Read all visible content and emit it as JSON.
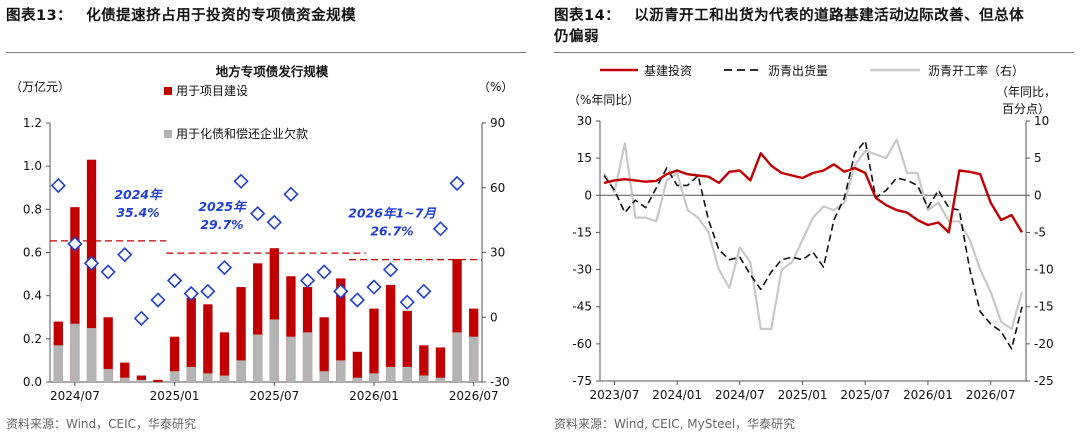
{
  "panels": [
    {
      "figure_label": "图表13：",
      "figure_title": "化债提速挤占用于投资的专项债资金规模",
      "source": "资料来源：Wind，CEIC，华泰研究"
    },
    {
      "figure_label": "图表14：",
      "figure_title_line1": "以沥青开工和出货为代表的道路基建活动边际改善、但总体",
      "figure_title_line2": "仍偏弱",
      "source": "资料来源：Wind, CEIC, MySteel，华泰研究"
    }
  ],
  "chart_data": [
    {
      "type": "bar",
      "title": "地方专项债发行规模",
      "ylabel_left": "（万亿元）",
      "ylabel_right": "（%）",
      "ylim_left": [
        0,
        1.2
      ],
      "ylim_right": [
        -30,
        90
      ],
      "yticks_left": [
        "0.0",
        "0.2",
        "0.4",
        "0.6",
        "0.8",
        "1.0",
        "1.2"
      ],
      "yticks_right": [
        "-30",
        "0",
        "30",
        "60",
        "90"
      ],
      "xtick_labels": [
        "2024/07",
        "2025/01",
        "2025/07",
        "2026/01",
        "2026/07"
      ],
      "xtick_months": [
        "2024-07",
        "2025-01",
        "2025-07",
        "2026-01",
        "2026-07"
      ],
      "months": [
        "2024-06",
        "2024-07",
        "2024-08",
        "2024-09",
        "2024-10",
        "2024-11",
        "2024-12",
        "2025-01",
        "2025-02",
        "2025-03",
        "2025-04",
        "2025-05",
        "2025-06",
        "2025-07",
        "2025-08",
        "2025-09",
        "2025-10",
        "2025-11",
        "2025-12",
        "2026-01",
        "2026-02",
        "2026-03",
        "2026-04",
        "2026-05",
        "2026-06",
        "2026-07"
      ],
      "series": [
        {
          "name": "用于项目建设",
          "color": "#c00000",
          "kind": "bar",
          "values": [
            0.28,
            0.81,
            1.03,
            0.3,
            0.09,
            0.03,
            0.01,
            0.21,
            0.39,
            0.36,
            0.23,
            0.44,
            0.55,
            0.62,
            0.49,
            0.44,
            0.3,
            0.48,
            0.14,
            0.34,
            0.45,
            0.33,
            0.17,
            0.16,
            0.57,
            0.34
          ]
        },
        {
          "name": "用于化债和偿还企业欠款",
          "color": "#b4b4b4",
          "kind": "bar",
          "values": [
            0.17,
            0.27,
            0.25,
            0.06,
            0.02,
            0.01,
            0.0,
            0.05,
            0.07,
            0.04,
            0.03,
            0.1,
            0.22,
            0.29,
            0.21,
            0.23,
            0.05,
            0.1,
            0.02,
            0.04,
            0.07,
            0.07,
            0.03,
            0.02,
            0.23,
            0.21
          ]
        },
        {
          "name": "用于项目建设占比(右)",
          "color": "#1f3fd6",
          "kind": "marker",
          "legend": false,
          "values": [
            61,
            34,
            25,
            21,
            29,
            -0.5,
            8,
            17,
            11,
            12,
            23,
            63,
            48,
            44,
            57,
            17,
            21,
            12,
            8,
            14,
            22,
            7,
            12,
            41,
            62
          ]
        }
      ],
      "marker_months": [
        "2024-06",
        "2024-07",
        "2024-08",
        "2024-09",
        "2024-10",
        "2024-11",
        "2024-12",
        "2025-01",
        "2025-02",
        "2025-03",
        "2025-04",
        "2025-05",
        "2025-06",
        "2025-07",
        "2025-08",
        "2025-09",
        "2025-10",
        "2025-11",
        "2025-12",
        "2026-01",
        "2026-02",
        "2026-03",
        "2026-04",
        "2026-05",
        "2026-06"
      ],
      "averages": [
        {
          "label_line1": "2024年",
          "label_line2": "35.4%",
          "value": 35.4,
          "from": "2024-06",
          "to": "2024-12"
        },
        {
          "label_line1": "2025年",
          "label_line2": "29.7%",
          "value": 29.7,
          "from": "2025-01",
          "to": "2025-12"
        },
        {
          "label_line1": "2026年1~7月",
          "label_line2": "26.7%",
          "value": 26.7,
          "from": "2025-12",
          "to": "2026-07"
        }
      ]
    },
    {
      "type": "line",
      "ylabel_left": "（%年同比）",
      "ylabel_right_line1": "（年同比，",
      "ylabel_right_line2": "百分点）",
      "ylim_left": [
        -75,
        30
      ],
      "ylim_right": [
        -25,
        10
      ],
      "yticks_left": [
        "-75",
        "-60",
        "-45",
        "-30",
        "-15",
        "0",
        "15",
        "30"
      ],
      "yticks_right": [
        "-25",
        "-20",
        "-15",
        "-10",
        "-5",
        "0",
        "5",
        "10"
      ],
      "xtick_labels": [
        "2023/07",
        "2024/01",
        "2024/07",
        "2025/01",
        "2025/07",
        "2026/01",
        "2026/07"
      ],
      "xtick_months": [
        "2023-07",
        "2024-01",
        "2024-07",
        "2025-01",
        "2025-07",
        "2026-01",
        "2026-07"
      ],
      "series": [
        {
          "name": "基建投资",
          "color": "#c00000",
          "style": "solid",
          "axis": "left",
          "points": [
            [
              "2023-06",
              5.0
            ],
            [
              "2023-07",
              6.0
            ],
            [
              "2023-08",
              6.5
            ],
            [
              "2023-09",
              6.0
            ],
            [
              "2023-10",
              5.5
            ],
            [
              "2023-11",
              5.8
            ],
            [
              "2023-12",
              8.5
            ],
            [
              "2024-01",
              10.0
            ],
            [
              "2024-02",
              8.5
            ],
            [
              "2024-03",
              8.0
            ],
            [
              "2024-04",
              7.5
            ],
            [
              "2024-05",
              5.0
            ],
            [
              "2024-06",
              9.5
            ],
            [
              "2024-07",
              10.0
            ],
            [
              "2024-08",
              6.0
            ],
            [
              "2024-09",
              17.0
            ],
            [
              "2024-10",
              12.0
            ],
            [
              "2024-11",
              9.0
            ],
            [
              "2024-12",
              8.0
            ],
            [
              "2025-01",
              7.0
            ],
            [
              "2025-02",
              9.0
            ],
            [
              "2025-03",
              10.0
            ],
            [
              "2025-04",
              12.5
            ],
            [
              "2025-05",
              9.5
            ],
            [
              "2025-06",
              11.0
            ],
            [
              "2025-07",
              9.0
            ],
            [
              "2025-08",
              -1.0
            ],
            [
              "2025-09",
              -4.0
            ],
            [
              "2025-10",
              -6.0
            ],
            [
              "2025-11",
              -7.0
            ],
            [
              "2025-12",
              -10.0
            ],
            [
              "2026-01",
              -12.0
            ],
            [
              "2026-02",
              -11.0
            ],
            [
              "2026-03",
              -15.0
            ],
            [
              "2026-04",
              10.0
            ],
            [
              "2026-05",
              9.5
            ],
            [
              "2026-06",
              8.5
            ],
            [
              "2026-07",
              -3.0
            ],
            [
              "2026-08",
              -10.0
            ],
            [
              "2026-09",
              -8.0
            ],
            [
              "2026-10",
              -15.0
            ]
          ]
        },
        {
          "name": "沥青出货量",
          "color": "#111111",
          "style": "dashed",
          "axis": "left",
          "points": [
            [
              "2023-06",
              8.0
            ],
            [
              "2023-07",
              2.0
            ],
            [
              "2023-08",
              -7.0
            ],
            [
              "2023-09",
              -2.0
            ],
            [
              "2023-10",
              -5.0
            ],
            [
              "2023-11",
              3.0
            ],
            [
              "2023-12",
              11.0
            ],
            [
              "2024-01",
              4.0
            ],
            [
              "2024-02",
              4.0
            ],
            [
              "2024-03",
              8.0
            ],
            [
              "2024-04",
              -10.0
            ],
            [
              "2024-05",
              -22.0
            ],
            [
              "2024-06",
              -26.0
            ],
            [
              "2024-07",
              -25.0
            ],
            [
              "2024-08",
              -32.0
            ],
            [
              "2024-09",
              -38.0
            ],
            [
              "2024-10",
              -31.0
            ],
            [
              "2024-11",
              -26.0
            ],
            [
              "2024-12",
              -25.0
            ],
            [
              "2025-01",
              -26.0
            ],
            [
              "2025-02",
              -23.0
            ],
            [
              "2025-03",
              -29.0
            ],
            [
              "2025-04",
              -10.0
            ],
            [
              "2025-05",
              -1.0
            ],
            [
              "2025-06",
              17.0
            ],
            [
              "2025-07",
              22.0
            ],
            [
              "2025-08",
              -1.0
            ],
            [
              "2025-09",
              2.0
            ],
            [
              "2025-10",
              7.0
            ],
            [
              "2025-11",
              6.0
            ],
            [
              "2025-12",
              4.0
            ],
            [
              "2026-01",
              -5.0
            ],
            [
              "2026-02",
              2.0
            ],
            [
              "2026-03",
              -5.0
            ],
            [
              "2026-04",
              -6.0
            ],
            [
              "2026-05",
              -30.0
            ],
            [
              "2026-06",
              -47.0
            ],
            [
              "2026-07",
              -52.0
            ],
            [
              "2026-08",
              -55.0
            ],
            [
              "2026-09",
              -62.0
            ],
            [
              "2026-10",
              -45.0
            ]
          ]
        },
        {
          "name": "沥青开工率（右）",
          "color": "#c8c8c8",
          "style": "solid",
          "axis": "right",
          "points": [
            [
              "2023-06",
              3.0
            ],
            [
              "2023-07",
              0.5
            ],
            [
              "2023-08",
              7.0
            ],
            [
              "2023-09",
              -3.0
            ],
            [
              "2023-10",
              -3.0
            ],
            [
              "2023-11",
              -3.5
            ],
            [
              "2023-12",
              2.0
            ],
            [
              "2024-01",
              3.0
            ],
            [
              "2024-02",
              -2.0
            ],
            [
              "2024-03",
              -3.0
            ],
            [
              "2024-04",
              -5.0
            ],
            [
              "2024-05",
              -10.0
            ],
            [
              "2024-06",
              -12.5
            ],
            [
              "2024-07",
              -7.0
            ],
            [
              "2024-08",
              -9.0
            ],
            [
              "2024-09",
              -18.0
            ],
            [
              "2024-10",
              -18.0
            ],
            [
              "2024-11",
              -10.0
            ],
            [
              "2024-12",
              -9.0
            ],
            [
              "2024-12.5",
              -7.5
            ],
            [
              "2025-01",
              -6.0
            ],
            [
              "2025-02",
              -3.0
            ],
            [
              "2025-03",
              -1.5
            ],
            [
              "2025-04",
              -2.0
            ],
            [
              "2025-05",
              -1.0
            ],
            [
              "2025-06",
              4.0
            ],
            [
              "2025-07",
              6.0
            ],
            [
              "2025-08",
              5.5
            ],
            [
              "2025-09",
              5.0
            ],
            [
              "2025-10",
              7.5
            ],
            [
              "2025-11",
              3.0
            ],
            [
              "2025-12",
              3.0
            ],
            [
              "2026-01",
              -2.0
            ],
            [
              "2026-02",
              -1.0
            ],
            [
              "2026-03",
              -3.5
            ],
            [
              "2026-04",
              -3.5
            ],
            [
              "2026-05",
              -6.0
            ],
            [
              "2026-06",
              -10.0
            ],
            [
              "2026-07",
              -13.0
            ],
            [
              "2026-08",
              -17.0
            ],
            [
              "2026-09",
              -18.0
            ],
            [
              "2026-10",
              -13.0
            ]
          ]
        }
      ]
    }
  ]
}
